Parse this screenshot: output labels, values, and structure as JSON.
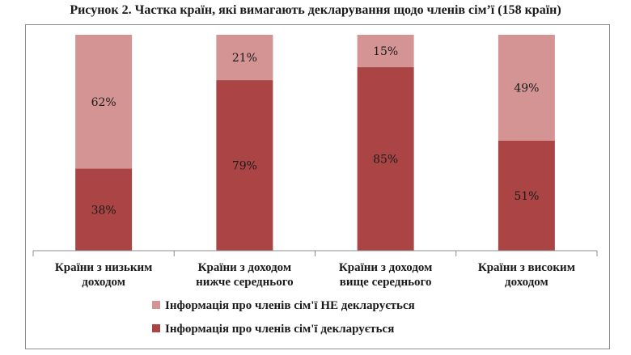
{
  "title": "Рисунок 2. Частка країн, які вимагають декларування щодо членів сім’ї (158 країн)",
  "colors": {
    "not_declared": "#d49494",
    "declared": "#ab4545",
    "axis": "#8c8c8c",
    "frame": "#8c8c8c"
  },
  "chart_data": {
    "type": "bar",
    "stacked": true,
    "percent": true,
    "categories": [
      [
        "Країни з низьким",
        "доходом"
      ],
      [
        "Країни з доходом",
        "нижче середнього"
      ],
      [
        "Країни з доходом",
        "вище середнього"
      ],
      [
        "Країни з високим",
        "доходом"
      ]
    ],
    "series": [
      {
        "name": "Інформація про членів сім'ї декларується",
        "color": "#ab4545",
        "values": [
          38,
          79,
          85,
          51
        ],
        "labels": [
          "38%",
          "79%",
          "85%",
          "51%"
        ]
      },
      {
        "name": "Інформація про членів сім'ї НЕ декларується",
        "color": "#d49494",
        "values": [
          62,
          21,
          15,
          49
        ],
        "labels": [
          "62%",
          "21%",
          "15%",
          "49%"
        ]
      }
    ],
    "legend_order": [
      1,
      0
    ],
    "legend_position": "bottom",
    "ylim": [
      0,
      100
    ],
    "grid": false
  }
}
